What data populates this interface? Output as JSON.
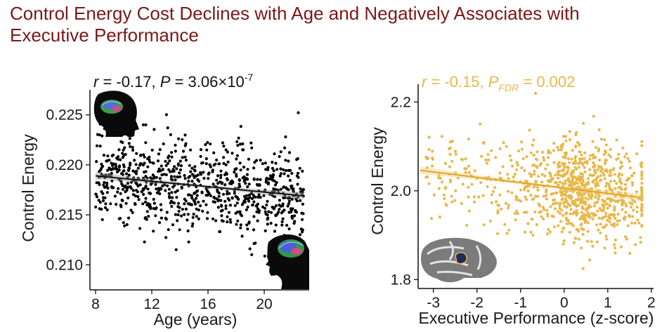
{
  "title": "Control Energy Cost Declines with Age and Negatively Associates with Executive Performance",
  "chart_data": [
    {
      "type": "scatter",
      "xlabel": "Age (years)",
      "ylabel": "Control Energy",
      "stat": {
        "r": "r",
        "r_value": " = -0.17, ",
        "p": "P",
        "p_value": " = 3.06×10",
        "p_exp": "-7"
      },
      "xlim": [
        7.6,
        23.2
      ],
      "ylim": [
        0.2075,
        0.2275
      ],
      "xticks": [
        8,
        12,
        16,
        20
      ],
      "xtick_labels": [
        "8",
        "12",
        "16",
        "20"
      ],
      "yticks": [
        0.21,
        0.215,
        0.22,
        0.225
      ],
      "ytick_labels": [
        "0.210",
        "0.215",
        "0.220",
        "0.225"
      ],
      "fit": {
        "x": [
          8,
          22.8
        ],
        "y": [
          0.2189,
          0.2169
        ]
      },
      "point_color": "#000000",
      "band_color": "#9e9e9e",
      "n_points": 850,
      "seed": 7,
      "grid": false,
      "legend": "none"
    },
    {
      "type": "scatter",
      "xlabel": "Executive Performance (z-score)",
      "ylabel": "Control Energy",
      "stat": {
        "r": "r",
        "r_value": " = -0.15, ",
        "p": "P",
        "p_sub": "FDR",
        "p_value": " = 0.002"
      },
      "xlim": [
        -3.35,
        2.05
      ],
      "ylim": [
        1.78,
        2.24
      ],
      "xticks": [
        -3,
        -2,
        -1,
        0,
        1,
        2
      ],
      "xtick_labels": [
        "-3",
        "-2",
        "-1",
        "0",
        "1",
        "2"
      ],
      "yticks": [
        1.8,
        2.0,
        2.2
      ],
      "ytick_labels": [
        "1.8",
        "2.0",
        "2.2"
      ],
      "fit": {
        "x": [
          -3.3,
          1.75
        ],
        "y": [
          2.046,
          1.985
        ]
      },
      "point_color": "#e8b84a",
      "band_color": "#f3d27e",
      "n_points": 900,
      "seed": 11,
      "grid": false,
      "legend": "none"
    }
  ]
}
